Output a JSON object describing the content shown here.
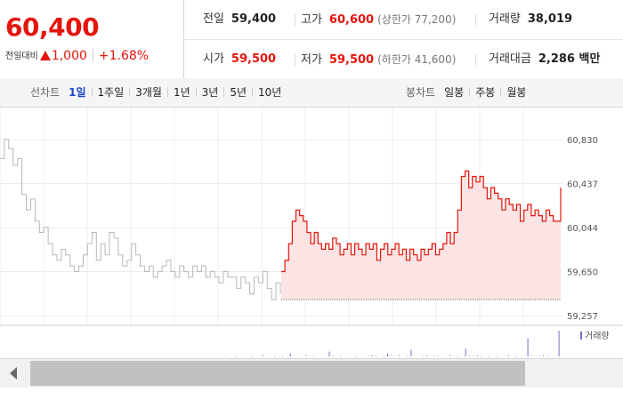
{
  "summary": {
    "price": "60,400",
    "change_label": "전일대비",
    "change_value": "1,000",
    "change_pct": "+1.68%",
    "prev_close": {
      "label": "전일",
      "value": "59,400"
    },
    "high": {
      "label": "고가",
      "value": "60,600",
      "sub": "(상한가 77,200)"
    },
    "volume": {
      "label": "거래량",
      "value": "38,019"
    },
    "open": {
      "label": "시가",
      "value": "59,500"
    },
    "low": {
      "label": "저가",
      "value": "59,500",
      "sub": "(하한가 41,600)"
    },
    "amount": {
      "label": "거래대금",
      "value": "2,286 백만"
    }
  },
  "line_tabs": {
    "title": "선차트",
    "items": [
      "1일",
      "1주일",
      "3개월",
      "1년",
      "3년",
      "5년",
      "10년"
    ],
    "active": "1일"
  },
  "candle_tabs": {
    "title": "봉차트",
    "items": [
      "일봉",
      "주봉",
      "월봉"
    ]
  },
  "colors": {
    "up": "#e4150b",
    "prev_day_line": "#b8b8b8",
    "fill": "#fde4e4",
    "active_tab": "#1d46c8",
    "volume_bar": "#7a6fc7"
  },
  "chart_data": {
    "type": "line",
    "y_ticks": [
      "60,830",
      "60,437",
      "60,044",
      "59,650",
      "59,257"
    ],
    "ylim": [
      59257,
      60830
    ],
    "grid": true,
    "previous_day_series": [
      60660,
      60830,
      60750,
      60600,
      60660,
      60340,
      60200,
      60300,
      60100,
      60000,
      60044,
      59900,
      59800,
      59750,
      59850,
      59800,
      59700,
      59650,
      59700,
      59800,
      59900,
      60000,
      59750,
      59900,
      59800,
      60000,
      59950,
      59800,
      59700,
      59750,
      59900,
      59800,
      59700,
      59650,
      59700,
      59600,
      59650,
      59700,
      59750,
      59650,
      59600,
      59700,
      59650,
      59600,
      59700,
      59650,
      59700,
      59600,
      59650,
      59600,
      59550,
      59650,
      59600,
      59600,
      59500,
      59600,
      59550,
      59450,
      59600,
      59550,
      59650,
      59500,
      59400,
      59550,
      59450
    ],
    "today_series": [
      59650,
      59750,
      59900,
      60100,
      60200,
      60150,
      60100,
      60000,
      59900,
      60000,
      59900,
      59850,
      59900,
      59850,
      59950,
      59900,
      59800,
      59850,
      59900,
      59800,
      59900,
      59850,
      59800,
      59900,
      59850,
      59900,
      59750,
      59850,
      59900,
      59800,
      59850,
      59900,
      59800,
      59850,
      59750,
      59850,
      59800,
      59750,
      59850,
      59800,
      59850,
      59900,
      59800,
      59850,
      59900,
      60000,
      59900,
      60000,
      60200,
      60500,
      60550,
      60400,
      60500,
      60450,
      60500,
      60400,
      60300,
      60400,
      60350,
      60300,
      60200,
      60300,
      60250,
      60200,
      60250,
      60100,
      60200,
      60250,
      60150,
      60200,
      60150,
      60100,
      60200,
      60150,
      60100,
      60100,
      60400
    ],
    "base_value": 59400,
    "volume_label": "거래량",
    "volume": [
      1,
      1,
      1,
      0,
      1,
      1,
      0,
      1,
      1,
      0,
      1,
      1,
      1,
      0,
      1,
      0,
      1,
      1,
      0,
      1,
      1,
      1,
      0,
      1,
      1,
      0,
      1,
      0,
      1,
      1,
      0,
      1,
      0,
      1,
      1,
      1,
      0,
      1,
      0,
      1,
      1,
      0,
      1,
      1,
      0,
      1,
      0,
      1,
      1,
      0,
      1,
      1,
      0,
      1,
      0,
      1,
      1,
      2,
      1,
      1,
      2,
      1,
      1,
      1,
      2,
      1,
      1,
      3,
      1,
      1,
      2,
      1,
      2,
      1,
      4,
      1,
      1,
      1,
      3,
      1,
      2,
      1,
      1,
      1,
      6,
      2,
      1,
      2,
      1,
      1,
      1,
      2,
      1,
      1,
      2,
      3,
      2,
      1,
      2,
      4,
      2,
      1,
      3,
      1,
      2,
      8,
      1,
      1,
      2,
      3,
      1,
      2,
      2,
      1,
      1,
      3,
      1,
      2,
      1,
      9,
      2,
      2,
      3,
      2,
      1,
      2,
      1,
      2,
      1,
      1,
      3,
      1,
      2,
      1,
      1,
      20,
      2,
      1,
      2,
      3,
      2,
      1,
      1,
      28
    ]
  }
}
